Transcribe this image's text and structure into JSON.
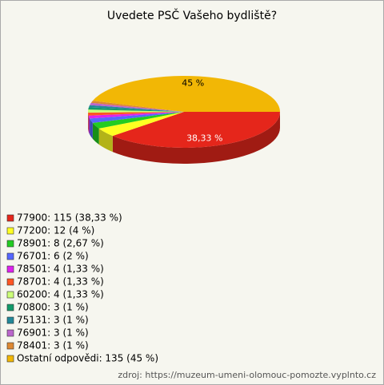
{
  "chart_data": {
    "type": "pie",
    "title": "Uvedete PSČ Vašeho bydliště?",
    "categories": [
      "77900",
      "77200",
      "78901",
      "76701",
      "78501",
      "78701",
      "60200",
      "70800",
      "75131",
      "76901",
      "78401",
      "Ostatní odpovědi"
    ],
    "values": [
      115,
      12,
      8,
      6,
      4,
      4,
      4,
      3,
      3,
      3,
      3,
      135
    ],
    "value_labels": [
      "38,33 %",
      null,
      null,
      null,
      null,
      null,
      null,
      null,
      null,
      null,
      null,
      "45 %"
    ],
    "legend_labels": [
      "77900: 115 (38,33 %)",
      "77200: 12 (4 %)",
      "78901: 8 (2,67 %)",
      "76701: 6 (2 %)",
      "78501: 4 (1,33 %)",
      "78701: 4 (1,33 %)",
      "60200: 4 (1,33 %)",
      "70800: 3 (1 %)",
      "75131: 3 (1 %)",
      "76901: 3 (1 %)",
      "78401: 3 (1 %)",
      "Ostatní odpovědi: 135 (45 %)"
    ],
    "colors": [
      "#e5261b",
      "#ffff22",
      "#22cc22",
      "#5566ff",
      "#dd22ee",
      "#ff5522",
      "#ccff77",
      "#129a6a",
      "#228899",
      "#bb66cc",
      "#dd8833",
      "#f2b705"
    ],
    "source": "zdroj: https://muzeum-umeni-olomouc-pomozte.vyplnto.cz"
  }
}
